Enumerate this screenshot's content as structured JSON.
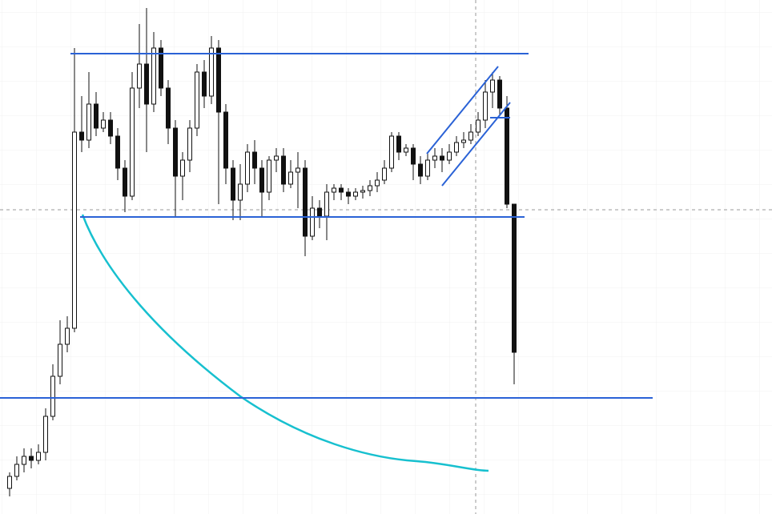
{
  "chart_data": {
    "type": "candlestick",
    "open": [
      32,
      47,
      62,
      72,
      67,
      77,
      122,
      172,
      212,
      232,
      477,
      467,
      512,
      482,
      492,
      472,
      432,
      397,
      532,
      562,
      512,
      582,
      532,
      482,
      422,
      442,
      482,
      552,
      522,
      582,
      502,
      432,
      392,
      412,
      452,
      432,
      402,
      442,
      447,
      412,
      427,
      432,
      347,
      382,
      372,
      402,
      407,
      402,
      397,
      402,
      404,
      410,
      417,
      432,
      472,
      452,
      457,
      437,
      422,
      442,
      447,
      442,
      452,
      464,
      467,
      477,
      492,
      527,
      542,
      507,
      387
    ],
    "high": [
      52,
      72,
      82,
      82,
      87,
      132,
      187,
      242,
      247,
      582,
      522,
      552,
      527,
      502,
      502,
      482,
      442,
      552,
      612,
      632,
      602,
      592,
      542,
      492,
      452,
      492,
      562,
      567,
      597,
      592,
      512,
      442,
      437,
      462,
      467,
      442,
      447,
      457,
      457,
      442,
      452,
      442,
      397,
      392,
      412,
      412,
      412,
      407,
      407,
      410,
      417,
      427,
      442,
      477,
      477,
      462,
      462,
      447,
      452,
      457,
      457,
      462,
      472,
      477,
      487,
      502,
      542,
      552,
      547,
      522,
      387
    ],
    "low": [
      22,
      42,
      52,
      57,
      62,
      67,
      117,
      162,
      202,
      227,
      452,
      457,
      472,
      477,
      462,
      417,
      377,
      392,
      507,
      452,
      502,
      522,
      462,
      372,
      392,
      427,
      472,
      507,
      512,
      387,
      412,
      367,
      367,
      402,
      412,
      372,
      392,
      427,
      402,
      407,
      382,
      322,
      342,
      357,
      342,
      392,
      392,
      387,
      392,
      394,
      397,
      402,
      412,
      427,
      442,
      447,
      417,
      412,
      417,
      432,
      427,
      437,
      447,
      457,
      462,
      472,
      482,
      507,
      497,
      382,
      162
    ],
    "close": [
      47,
      62,
      72,
      67,
      77,
      122,
      172,
      212,
      232,
      477,
      467,
      512,
      482,
      492,
      472,
      432,
      397,
      532,
      562,
      512,
      582,
      532,
      482,
      422,
      442,
      482,
      552,
      522,
      582,
      502,
      432,
      392,
      412,
      452,
      432,
      402,
      442,
      447,
      412,
      427,
      432,
      347,
      382,
      372,
      402,
      407,
      402,
      397,
      402,
      404,
      410,
      417,
      432,
      472,
      452,
      457,
      437,
      422,
      442,
      447,
      442,
      452,
      464,
      467,
      477,
      492,
      527,
      542,
      507,
      387,
      202
    ],
    "ylim": [
      0,
      642
    ],
    "levels": [
      575,
      371,
      145
    ],
    "level_color": "#2a62d6",
    "up_color": "#ffffff",
    "down_color": "#111111",
    "grid": true
  }
}
